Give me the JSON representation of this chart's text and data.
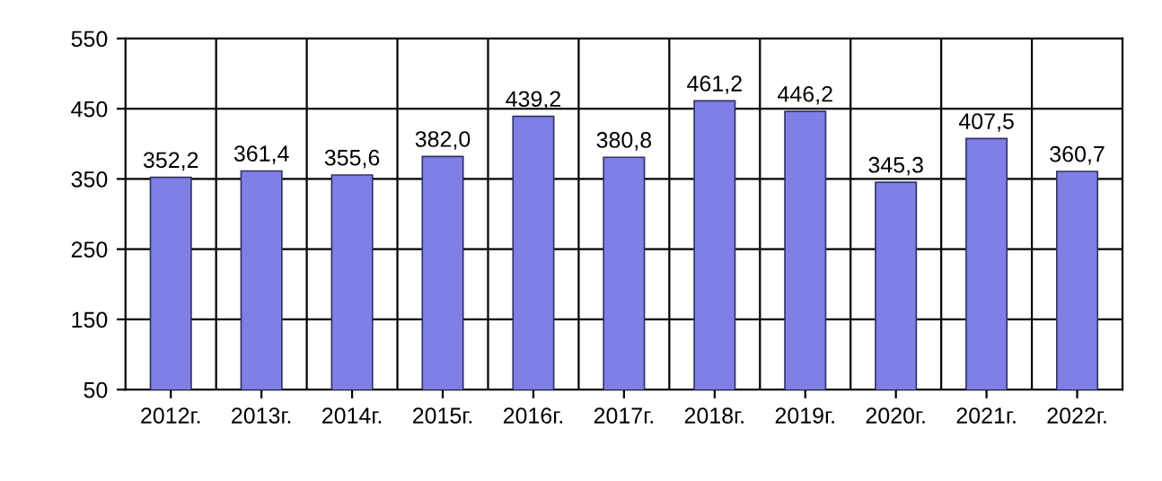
{
  "chart_data": {
    "type": "bar",
    "categories": [
      "2012г.",
      "2013г.",
      "2014г.",
      "2015г.",
      "2016г.",
      "2017г.",
      "2018г.",
      "2019г.",
      "2020г.",
      "2021г.",
      "2022г."
    ],
    "values": [
      352.2,
      361.4,
      355.6,
      382.0,
      439.2,
      380.8,
      461.2,
      446.2,
      345.3,
      407.5,
      360.7
    ],
    "value_labels": [
      "352,2",
      "361,4",
      "355,6",
      "382,0",
      "439,2",
      "380,8",
      "461,2",
      "446,2",
      "345,3",
      "407,5",
      "360,7"
    ],
    "color": "#7f7fe6",
    "ylim": [
      50,
      550
    ],
    "yticks": [
      50,
      150,
      250,
      350,
      450,
      550
    ],
    "grid": true,
    "legend": false
  }
}
